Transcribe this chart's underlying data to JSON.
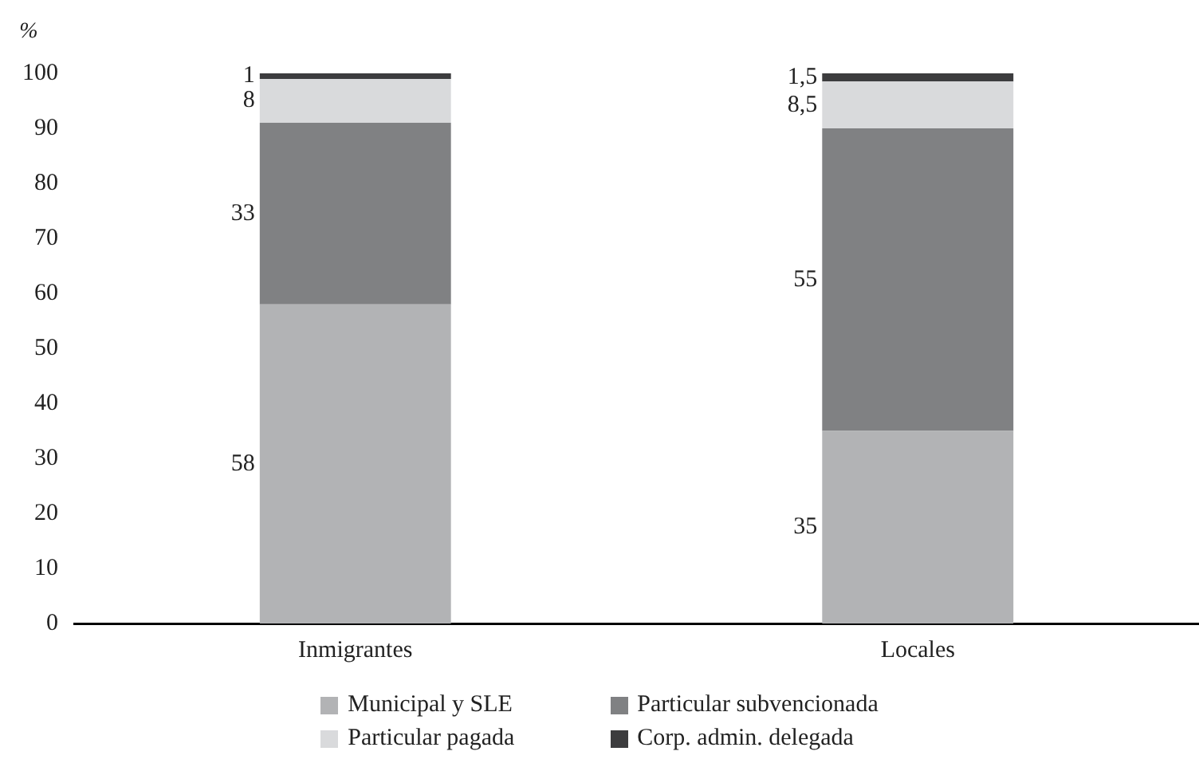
{
  "chart_data": {
    "type": "bar",
    "stacked": true,
    "ylabel": "%",
    "categories": [
      "Inmigrantes",
      "Locales"
    ],
    "series": [
      {
        "name": "Municipal y SLE",
        "color": "#b2b3b5",
        "values": [
          58,
          35
        ],
        "value_labels": [
          "58",
          "35"
        ]
      },
      {
        "name": "Particular subvencionada",
        "color": "#808183",
        "values": [
          33,
          55
        ],
        "value_labels": [
          "33",
          "55"
        ]
      },
      {
        "name": "Particular pagada",
        "color": "#d9dadc",
        "values": [
          8,
          8.5
        ],
        "value_labels": [
          "8",
          "8,5"
        ]
      },
      {
        "name": "Corp. admin. delegada",
        "color": "#3c3c3e",
        "values": [
          1,
          1.5
        ],
        "value_labels": [
          "1",
          "1,5"
        ]
      }
    ],
    "ylim": [
      0,
      100
    ],
    "yticks": [
      0,
      10,
      20,
      30,
      40,
      50,
      60,
      70,
      80,
      90,
      100
    ],
    "grid": false,
    "legend": "bottom"
  }
}
